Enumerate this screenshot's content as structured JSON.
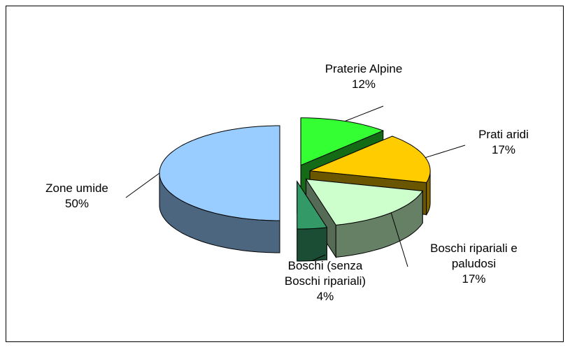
{
  "chart_data": {
    "type": "pie3d",
    "categories": [
      "Praterie Alpine",
      "Prati aridi",
      "Boschi ripariali e paludosi",
      "Boschi (senza Boschi ripariali)",
      "Zone umide"
    ],
    "values": [
      12,
      17,
      17,
      4,
      50
    ],
    "value_labels": [
      "12%",
      "17%",
      "17%",
      "4%",
      "50%"
    ],
    "colors": [
      "#33ff33",
      "#ffcc00",
      "#ccffcc",
      "#339966",
      "#99ccff"
    ]
  }
}
